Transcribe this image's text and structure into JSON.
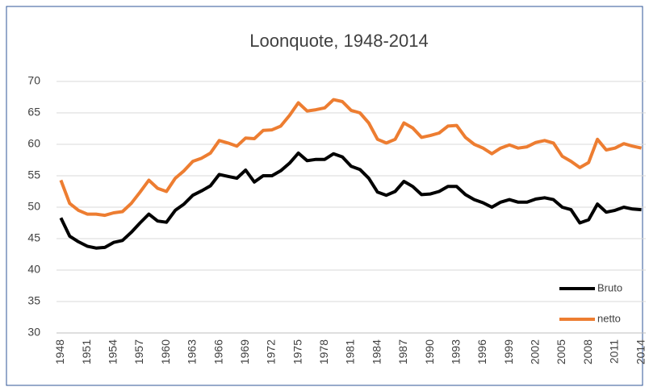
{
  "chart_data": {
    "type": "line",
    "title": "Loonquote, 1948-2014",
    "categories": [
      "1948",
      null,
      null,
      "1951",
      null,
      null,
      "1954",
      null,
      null,
      "1957",
      null,
      null,
      "1960",
      null,
      null,
      "1963",
      null,
      null,
      "1966",
      null,
      null,
      "1969",
      null,
      null,
      "1972",
      null,
      null,
      "1975",
      null,
      null,
      "1978",
      null,
      null,
      "1981",
      null,
      null,
      "1984",
      null,
      null,
      "1987",
      null,
      null,
      "1990",
      null,
      null,
      "1993",
      null,
      null,
      "1996",
      null,
      null,
      "1999",
      null,
      null,
      "2002",
      null,
      null,
      "2005",
      null,
      null,
      "2008",
      null,
      null,
      "2011",
      null,
      null,
      "2014"
    ],
    "series": [
      {
        "name": "Bruto",
        "color": "#000000",
        "values": [
          48.3,
          45.4,
          44.5,
          43.8,
          43.5,
          43.6,
          44.4,
          44.7,
          46.0,
          47.5,
          48.9,
          47.8,
          47.6,
          49.5,
          50.5,
          51.9,
          52.6,
          53.4,
          55.2,
          54.9,
          54.6,
          55.9,
          54.0,
          55.0,
          55.0,
          55.8,
          57.0,
          58.6,
          57.4,
          57.6,
          57.6,
          58.5,
          58.0,
          56.5,
          56.0,
          54.6,
          52.4,
          51.9,
          52.5,
          54.1,
          53.3,
          52.0,
          52.1,
          52.5,
          53.3,
          53.3,
          52.0,
          51.2,
          50.7,
          50.0,
          50.8,
          51.2,
          50.8,
          50.8,
          51.3,
          51.5,
          51.2,
          50.0,
          49.6,
          47.5,
          48.0,
          50.5,
          49.2,
          49.5,
          50.0,
          49.7,
          49.6
        ]
      },
      {
        "name": "netto",
        "color": "#ed7d31",
        "values": [
          54.3,
          50.6,
          49.5,
          48.9,
          48.9,
          48.7,
          49.1,
          49.3,
          50.6,
          52.4,
          54.3,
          53.0,
          52.5,
          54.6,
          55.8,
          57.3,
          57.8,
          58.6,
          60.6,
          60.2,
          59.7,
          61.0,
          60.9,
          62.2,
          62.3,
          62.9,
          64.6,
          66.6,
          65.3,
          65.5,
          65.8,
          67.1,
          66.8,
          65.4,
          65.0,
          63.4,
          60.8,
          60.2,
          60.8,
          63.4,
          62.6,
          61.1,
          61.4,
          61.8,
          62.9,
          63.0,
          61.1,
          60.0,
          59.4,
          58.5,
          59.4,
          59.9,
          59.4,
          59.6,
          60.3,
          60.6,
          60.2,
          58.1,
          57.3,
          56.3,
          57.1,
          60.8,
          59.1,
          59.4,
          60.1,
          59.7,
          59.4
        ]
      }
    ],
    "ylim": [
      30,
      70
    ],
    "yticks": [
      30,
      35,
      40,
      45,
      50,
      55,
      60,
      65,
      70
    ],
    "grid": true,
    "legend": "lower right"
  }
}
